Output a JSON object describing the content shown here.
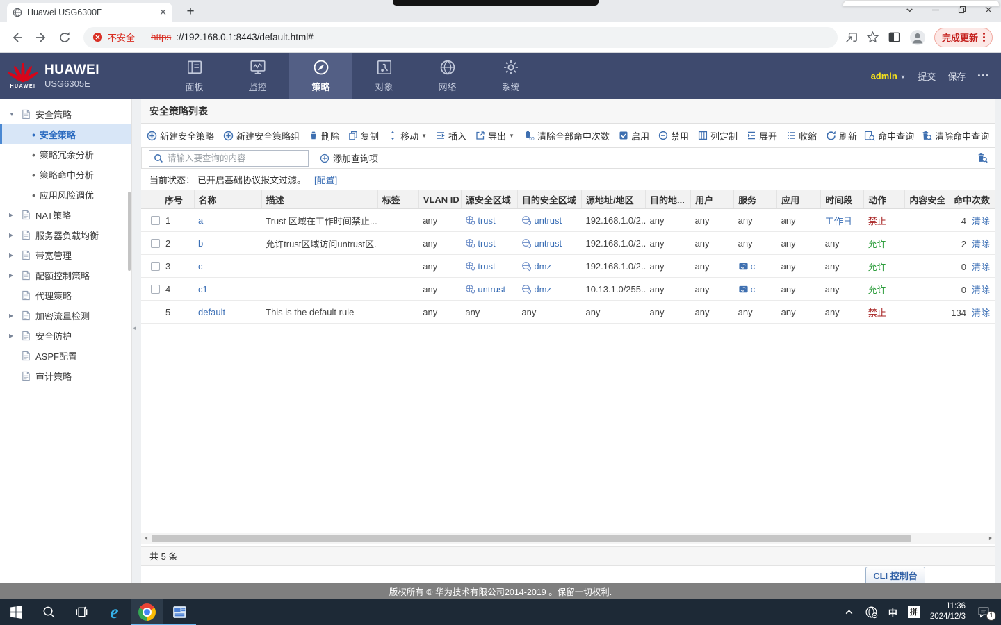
{
  "browser": {
    "tab_title": "Huawei USG6300E",
    "not_secure": "不安全",
    "url_scheme": "https",
    "url_rest": "://192.168.0.1:8443/default.html#",
    "update_button": "完成更新",
    "accent_red": "#d93025"
  },
  "header": {
    "brand": "HUAWEI",
    "logo_caption": "HUAWEI",
    "model": "USG6305E",
    "nav": [
      {
        "label": "面板",
        "icon": "dashboard-icon",
        "active": false
      },
      {
        "label": "监控",
        "icon": "monitor-icon",
        "active": false
      },
      {
        "label": "策略",
        "icon": "compass-icon",
        "active": true
      },
      {
        "label": "对象",
        "icon": "object-icon",
        "active": false
      },
      {
        "label": "网络",
        "icon": "globe-icon",
        "active": false
      },
      {
        "label": "系统",
        "icon": "gear-icon",
        "active": false
      }
    ],
    "user": "admin",
    "submit": "提交",
    "save": "保存",
    "bg_color": "#3e4a6e",
    "active_color": "#535f85"
  },
  "sidebar": {
    "items": [
      {
        "label": "安全策略",
        "level": 0,
        "expander": "expanded",
        "icon": "policy-icon"
      },
      {
        "label": "安全策略",
        "level": 1,
        "selected": true
      },
      {
        "label": "策略冗余分析",
        "level": 1
      },
      {
        "label": "策略命中分析",
        "level": 1
      },
      {
        "label": "应用风险调优",
        "level": 1
      },
      {
        "label": "NAT策略",
        "level": 0,
        "expander": "collapsed",
        "icon": "nat-icon"
      },
      {
        "label": "服务器负载均衡",
        "level": 0,
        "expander": "collapsed",
        "icon": "load-balance-icon"
      },
      {
        "label": "带宽管理",
        "level": 0,
        "expander": "collapsed",
        "icon": "bandwidth-icon"
      },
      {
        "label": "配额控制策略",
        "level": 0,
        "expander": "collapsed",
        "icon": "quota-icon"
      },
      {
        "label": "代理策略",
        "level": 0,
        "icon": "proxy-icon"
      },
      {
        "label": "加密流量检测",
        "level": 0,
        "expander": "collapsed",
        "icon": "encrypt-icon"
      },
      {
        "label": "安全防护",
        "level": 0,
        "expander": "collapsed",
        "icon": "protect-icon"
      },
      {
        "label": "ASPF配置",
        "level": 0,
        "icon": "aspf-icon"
      },
      {
        "label": "审计策略",
        "level": 0,
        "icon": "audit-icon"
      }
    ]
  },
  "main": {
    "title": "安全策略列表",
    "toolbar_left": [
      {
        "icon": "new-policy-icon",
        "label": "新建安全策略"
      },
      {
        "icon": "new-policy-group-icon",
        "label": "新建安全策略组"
      },
      {
        "icon": "delete-icon",
        "label": "删除"
      },
      {
        "icon": "copy-icon",
        "label": "复制"
      },
      {
        "icon": "move-icon",
        "label": "移动",
        "caret": true
      },
      {
        "icon": "insert-icon",
        "label": "插入"
      },
      {
        "icon": "export-icon",
        "label": "导出",
        "caret": true
      },
      {
        "icon": "clear-hits-icon",
        "label": "清除全部命中次数"
      },
      {
        "icon": "enable-icon",
        "label": "启用"
      },
      {
        "icon": "disable-icon",
        "label": "禁用"
      },
      {
        "icon": "columns-icon",
        "label": "列定制"
      },
      {
        "icon": "expand-icon",
        "label": "展开"
      },
      {
        "icon": "collapse-icon",
        "label": "收缩"
      }
    ],
    "toolbar_right": [
      {
        "icon": "refresh-icon",
        "label": "刷新"
      },
      {
        "icon": "hit-query-icon",
        "label": "命中查询"
      },
      {
        "icon": "clear-hit-query-icon",
        "label": "清除命中查询"
      }
    ],
    "search": {
      "placeholder": "请输入要查询的内容",
      "add_query": "添加查询项"
    },
    "status_label": "当前状态：",
    "status_text": "已开启基础协议报文过滤。",
    "config_link": "[配置]",
    "table": {
      "columns": [
        {
          "key": "num",
          "label": "序号"
        },
        {
          "key": "name",
          "label": "名称"
        },
        {
          "key": "desc",
          "label": "描述"
        },
        {
          "key": "tag",
          "label": "标签"
        },
        {
          "key": "vlan",
          "label": "VLAN ID"
        },
        {
          "key": "src_zone",
          "label": "源安全区域"
        },
        {
          "key": "dst_zone",
          "label": "目的安全区域"
        },
        {
          "key": "src_addr",
          "label": "源地址/地区"
        },
        {
          "key": "dst_addr",
          "label": "目的地..."
        },
        {
          "key": "user",
          "label": "用户"
        },
        {
          "key": "service",
          "label": "服务"
        },
        {
          "key": "app",
          "label": "应用"
        },
        {
          "key": "schedule",
          "label": "时间段"
        },
        {
          "key": "action",
          "label": "动作"
        },
        {
          "key": "content",
          "label": "内容安全"
        },
        {
          "key": "hits",
          "label": "命中次数"
        }
      ],
      "rows": [
        {
          "num": "1",
          "has_checkbox": true,
          "name": "a",
          "desc": "Trust 区域在工作时间禁止...",
          "tag": "",
          "vlan": "any",
          "src_zone": {
            "icon": "zone-icon",
            "label": "trust"
          },
          "dst_zone": {
            "icon": "zone-icon",
            "label": "untrust"
          },
          "src_addr": "192.168.1.0/2...",
          "dst_addr": "any",
          "user": "any",
          "service": "any",
          "app": "any",
          "schedule": {
            "label": "工作日",
            "link": true
          },
          "action": {
            "label": "禁止",
            "type": "deny"
          },
          "content": "",
          "hits": "4",
          "clear": "清除"
        },
        {
          "num": "2",
          "has_checkbox": true,
          "name": "b",
          "desc": "允许trust区域访问untrust区...",
          "tag": "",
          "vlan": "any",
          "src_zone": {
            "icon": "zone-icon",
            "label": "trust"
          },
          "dst_zone": {
            "icon": "zone-icon",
            "label": "untrust"
          },
          "src_addr": "192.168.1.0/2...",
          "dst_addr": "any",
          "user": "any",
          "service": "any",
          "app": "any",
          "schedule": "any",
          "action": {
            "label": "允许",
            "type": "allow"
          },
          "content": "",
          "hits": "2",
          "clear": "清除"
        },
        {
          "num": "3",
          "has_checkbox": true,
          "name": "c",
          "desc": "",
          "tag": "",
          "vlan": "any",
          "src_zone": {
            "icon": "zone-icon",
            "label": "trust"
          },
          "dst_zone": {
            "icon": "zone-icon",
            "label": "dmz"
          },
          "src_addr": "192.168.1.0/2...",
          "dst_addr": "any",
          "user": "any",
          "service": {
            "icon": "service-icon",
            "label": "c"
          },
          "app": "any",
          "schedule": "any",
          "action": {
            "label": "允许",
            "type": "allow"
          },
          "content": "",
          "hits": "0",
          "clear": "清除"
        },
        {
          "num": "4",
          "has_checkbox": true,
          "name": "c1",
          "desc": "",
          "tag": "",
          "vlan": "any",
          "src_zone": {
            "icon": "zone-icon",
            "label": "untrust"
          },
          "dst_zone": {
            "icon": "zone-icon",
            "label": "dmz"
          },
          "src_addr": "10.13.1.0/255....",
          "dst_addr": "any",
          "user": "any",
          "service": {
            "icon": "service-icon",
            "label": "c"
          },
          "app": "any",
          "schedule": "any",
          "action": {
            "label": "允许",
            "type": "allow"
          },
          "content": "",
          "hits": "0",
          "clear": "清除"
        },
        {
          "num": "5",
          "has_checkbox": false,
          "name": "default",
          "desc": "This is the default rule",
          "tag": "",
          "vlan": "any",
          "src_zone": "any",
          "dst_zone": "any",
          "src_addr": "any",
          "dst_addr": "any",
          "user": "any",
          "service": "any",
          "app": "any",
          "schedule": "any",
          "action": {
            "label": "禁止",
            "type": "deny"
          },
          "content": "",
          "hits": "134",
          "clear": "清除"
        }
      ]
    },
    "total": "共 5 条",
    "cli_button": "CLI 控制台",
    "footer": "版权所有 © 华为技术有限公司2014-2019 。保留一切权利.",
    "colors": {
      "link": "#3a6eb5",
      "allow": "#2f9e3e",
      "deny": "#a61e1e",
      "tool_icon": "#3e6fb0"
    }
  },
  "taskbar": {
    "apps": [
      {
        "icon": "start-icon"
      },
      {
        "icon": "taskbar-search-icon"
      },
      {
        "icon": "taskview-icon"
      },
      {
        "icon": "ie-icon"
      },
      {
        "icon": "chrome-icon",
        "active": true,
        "underline": true
      },
      {
        "icon": "docs-icon",
        "underline": true
      }
    ],
    "tray_icons": [
      "chevron-up-icon",
      "network-globe-icon"
    ],
    "lang": "中",
    "ime": "拼",
    "time": "11:36",
    "date": "2024/12/3",
    "badge": "1"
  }
}
